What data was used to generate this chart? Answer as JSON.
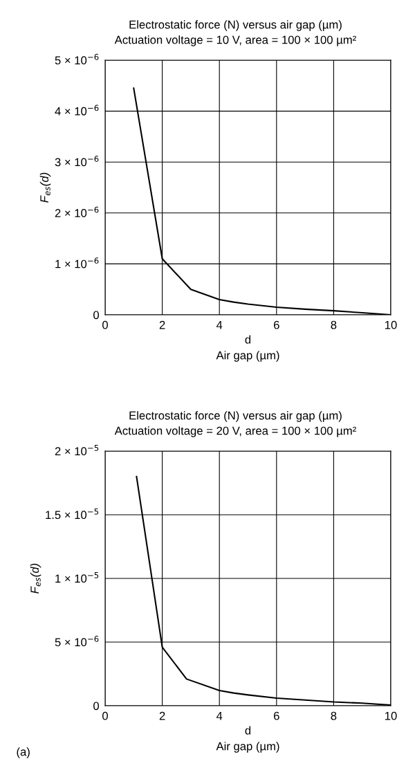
{
  "chart_data": [
    {
      "type": "line",
      "title": "Electrostatic force (N) versus air gap (µm)",
      "subtitle": "Actuation voltage = 10 V, area = 100 × 100 µm²",
      "xlabel": "d\nAir gap (µm)",
      "ylabel": "F$_{es}$(d)",
      "x": [
        1,
        2,
        3,
        4,
        4.5,
        5,
        6,
        7,
        8,
        9,
        10
      ],
      "series": [
        {
          "color": "#000000",
          "values": [
            4.45e-06,
            1.1e-06,
            5e-07,
            3e-07,
            2.5e-07,
            2.1e-07,
            1.5e-07,
            1.1e-07,
            8e-08,
            4e-08,
            0
          ]
        }
      ],
      "xlim": [
        0,
        10
      ],
      "xticks": [
        0,
        2,
        4,
        6,
        8,
        10
      ],
      "ylim": [
        0,
        5e-06
      ],
      "yticks": [
        0,
        {
          "value": 1e-06,
          "label": "1 × 10$^{−6}$"
        },
        {
          "value": 2e-06,
          "label": "2 × 10$^{−6}$"
        },
        {
          "value": 3e-06,
          "label": "3 × 10$^{−6}$"
        },
        {
          "value": 4e-06,
          "label": "4 × 10$^{−6}$"
        },
        {
          "value": 5e-06,
          "label": "5 × 10$^{−6}$"
        }
      ],
      "grid": true,
      "marker": "none",
      "line_style": "solid"
    },
    {
      "type": "line",
      "title": "Electrostatic force (N) versus air gap (µm)",
      "subtitle": "Actuation voltage = 20 V, area = 100 × 100 µm²",
      "xlabel": "d\nAir gap (µm)",
      "ylabel": "F$_{es}$(d)",
      "annotations": [
        "(a)"
      ],
      "x": [
        1.1,
        2,
        2.85,
        4,
        4.5,
        5,
        6,
        7,
        8,
        9,
        10
      ],
      "series": [
        {
          "color": "#000000",
          "values": [
            1.8e-05,
            4.6e-06,
            2.1e-06,
            1.2e-06,
            1e-06,
            8.5e-07,
            6e-07,
            4.5e-07,
            3e-07,
            2e-07,
            5e-08
          ]
        }
      ],
      "xlim": [
        0,
        10
      ],
      "xticks": [
        0,
        2,
        4,
        6,
        8,
        10
      ],
      "ylim": [
        0,
        2e-05
      ],
      "yticks": [
        0,
        {
          "value": 5e-06,
          "label": "5 × 10$^{−6}$"
        },
        {
          "value": 1e-05,
          "label": "1 × 10$^{−5}$"
        },
        {
          "value": 1.5e-05,
          "label": "1.5 × 10$^{−5}$"
        },
        {
          "value": 2e-05,
          "label": "2 × 10$^{−5}$"
        }
      ],
      "grid": true,
      "marker": "none",
      "line_style": "solid"
    }
  ]
}
